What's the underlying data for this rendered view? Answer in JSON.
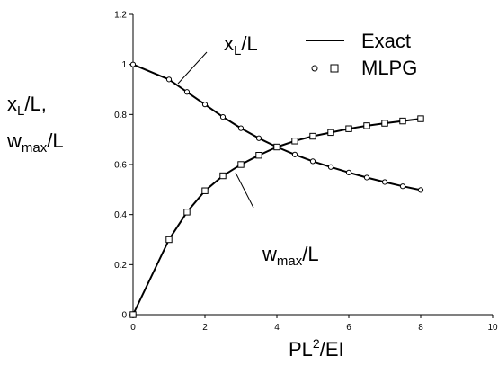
{
  "chart_data": {
    "type": "line",
    "xlim": [
      0,
      10
    ],
    "ylim": [
      0,
      1.2
    ],
    "x_ticks": [
      "0",
      "2",
      "4",
      "6",
      "8",
      "10"
    ],
    "y_ticks": [
      "0",
      "0.2",
      "0.4",
      "0.6",
      "0.8",
      "1",
      "1.2"
    ],
    "grid": false,
    "xlabel": {
      "base": "PL",
      "sup": "2",
      "rest": "/EI"
    },
    "ylabel": {
      "line1_base": "x",
      "line1_sub": "L",
      "line1_rest": "/L,",
      "line2_base": "w",
      "line2_sub": "max",
      "line2_rest": "/L"
    },
    "legend": {
      "placement": "top-right",
      "exact_label": "Exact",
      "mlpg_label": "MLPG"
    },
    "annotations": {
      "xl": {
        "base": "x",
        "sub": "L",
        "rest": "/L"
      },
      "wmax": {
        "base": "w",
        "sub": "max",
        "rest": "/L"
      }
    },
    "series": [
      {
        "key": "xL",
        "marker": "circle",
        "x": [
          0,
          1,
          1.5,
          2,
          2.5,
          3,
          3.5,
          4,
          4.5,
          5,
          5.5,
          6,
          6.5,
          7,
          7.5,
          8
        ],
        "y": [
          1.0,
          0.94,
          0.89,
          0.84,
          0.79,
          0.745,
          0.705,
          0.67,
          0.64,
          0.613,
          0.59,
          0.568,
          0.548,
          0.53,
          0.513,
          0.498
        ]
      },
      {
        "key": "wmax",
        "marker": "square",
        "x": [
          0,
          1,
          1.5,
          2,
          2.5,
          3,
          3.5,
          4,
          4.5,
          5,
          5.5,
          6,
          6.5,
          7,
          7.5,
          8
        ],
        "y": [
          0.0,
          0.3,
          0.41,
          0.495,
          0.555,
          0.6,
          0.637,
          0.67,
          0.694,
          0.713,
          0.728,
          0.743,
          0.755,
          0.765,
          0.774,
          0.783
        ]
      }
    ]
  }
}
